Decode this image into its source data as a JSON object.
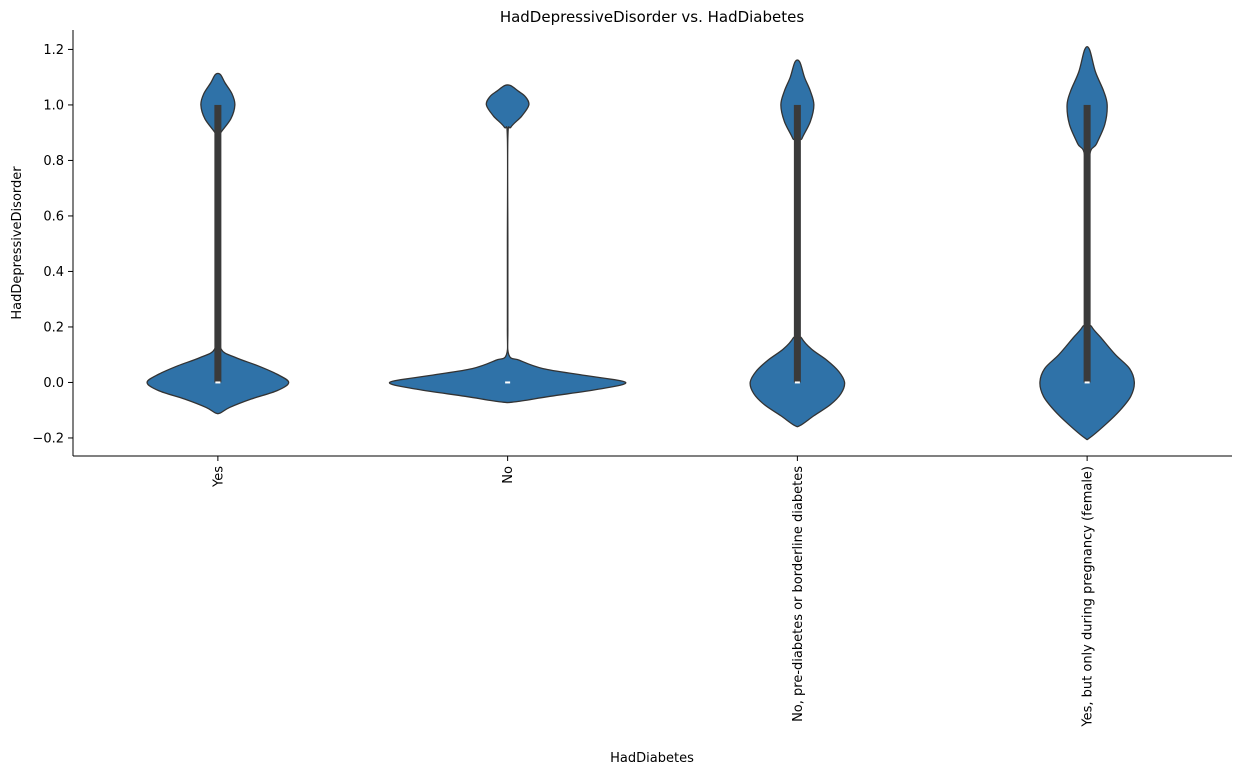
{
  "chart_data": {
    "type": "violin",
    "title": "HadDepressiveDisorder vs. HadDiabetes",
    "xlabel": "HadDiabetes",
    "ylabel": "HadDepressiveDisorder",
    "ylim": [
      -0.265,
      1.27
    ],
    "yticks": [
      -0.2,
      0.0,
      0.2,
      0.4,
      0.6,
      0.8,
      1.0,
      1.2
    ],
    "ytick_labels": [
      "−0.2",
      "0.0",
      "0.2",
      "0.4",
      "0.6",
      "0.8",
      "1.0",
      "1.2"
    ],
    "categories": [
      "Yes",
      "No",
      "No, pre-diabetes or borderline diabetes",
      "Yes, but only during pregnancy (female)"
    ],
    "grid": false,
    "color": "#2f72a8",
    "edge_color": "#333333",
    "violins": [
      {
        "category": "Yes",
        "q1": 0.0,
        "median": 0.0,
        "q3": 1.0,
        "density": [
          [
            -0.11,
            0.1
          ],
          [
            -0.09,
            0.5
          ],
          [
            -0.06,
            1.4
          ],
          [
            -0.03,
            2.5
          ],
          [
            0.0,
            3.0
          ],
          [
            0.03,
            2.5
          ],
          [
            0.06,
            1.7
          ],
          [
            0.09,
            0.75
          ],
          [
            0.12,
            0.14
          ],
          [
            0.2,
            0.045
          ],
          [
            0.5,
            0.04
          ],
          [
            0.88,
            0.045
          ],
          [
            0.9,
            0.12
          ],
          [
            0.95,
            0.55
          ],
          [
            1.0,
            0.72
          ],
          [
            1.04,
            0.6
          ],
          [
            1.08,
            0.3
          ],
          [
            1.11,
            0.1
          ]
        ]
      },
      {
        "category": "No",
        "q1": 0.0,
        "median": 0.0,
        "q3": 0.0,
        "density": [
          [
            -0.07,
            0.3
          ],
          [
            -0.05,
            1.8
          ],
          [
            -0.025,
            3.8
          ],
          [
            0.0,
            5.0
          ],
          [
            0.025,
            3.3
          ],
          [
            0.05,
            1.5
          ],
          [
            0.08,
            0.5
          ],
          [
            0.1,
            0.05
          ],
          [
            0.2,
            0.01
          ],
          [
            0.5,
            0.01
          ],
          [
            0.88,
            0.01
          ],
          [
            0.92,
            0.14
          ],
          [
            0.96,
            0.6
          ],
          [
            1.0,
            0.9
          ],
          [
            1.03,
            0.75
          ],
          [
            1.05,
            0.45
          ],
          [
            1.07,
            0.12
          ]
        ]
      },
      {
        "category": "No, pre-diabetes or borderline diabetes",
        "q1": 0.0,
        "median": 0.0,
        "q3": 1.0,
        "density": [
          [
            -0.155,
            0.12
          ],
          [
            -0.12,
            0.7
          ],
          [
            -0.08,
            1.4
          ],
          [
            -0.04,
            1.85
          ],
          [
            0.0,
            2.0
          ],
          [
            0.04,
            1.75
          ],
          [
            0.08,
            1.25
          ],
          [
            0.12,
            0.6
          ],
          [
            0.16,
            0.18
          ],
          [
            0.2,
            0.06
          ],
          [
            0.5,
            0.05
          ],
          [
            0.84,
            0.06
          ],
          [
            0.88,
            0.2
          ],
          [
            0.94,
            0.55
          ],
          [
            1.0,
            0.7
          ],
          [
            1.05,
            0.55
          ],
          [
            1.1,
            0.3
          ],
          [
            1.155,
            0.1
          ]
        ]
      },
      {
        "category": "Yes, but only during pregnancy (female)",
        "q1": 0.0,
        "median": 0.0,
        "q3": 1.0,
        "density": [
          [
            -0.2,
            0.1
          ],
          [
            -0.15,
            0.8
          ],
          [
            -0.1,
            1.4
          ],
          [
            -0.05,
            1.85
          ],
          [
            0.0,
            2.0
          ],
          [
            0.05,
            1.8
          ],
          [
            0.1,
            1.2
          ],
          [
            0.16,
            0.6
          ],
          [
            0.2,
            0.2
          ],
          [
            0.24,
            0.08
          ],
          [
            0.5,
            0.05
          ],
          [
            0.8,
            0.08
          ],
          [
            0.86,
            0.4
          ],
          [
            0.93,
            0.75
          ],
          [
            1.0,
            0.85
          ],
          [
            1.05,
            0.7
          ],
          [
            1.12,
            0.35
          ],
          [
            1.2,
            0.1
          ]
        ]
      }
    ]
  }
}
